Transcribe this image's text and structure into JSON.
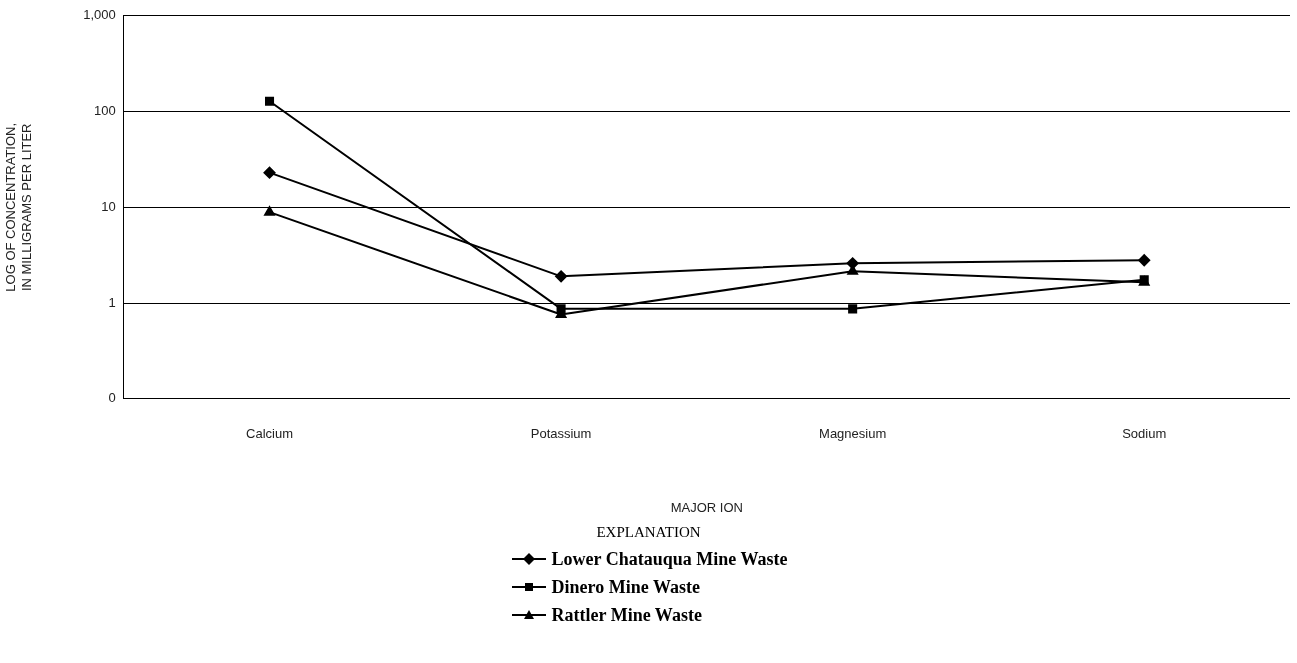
{
  "chart_data": {
    "type": "line",
    "xlabel": "MAJOR ION",
    "ylabel": "LOG OF CONCENTRATION,\nIN MILLIGRAMS PER LITER",
    "legend_title": "EXPLANATION",
    "legend": "bottom",
    "grid": "y",
    "log": "y",
    "line_style": "solid",
    "categories": [
      "Calcium",
      "Potassium",
      "Magnesium",
      "Sodium"
    ],
    "ylim": [
      0.1,
      1000
    ],
    "yticks": [
      {
        "value": 0.1,
        "label": "0"
      },
      1,
      10,
      100,
      {
        "value": 1000,
        "label": "1,000"
      }
    ],
    "series": [
      {
        "name": "Lower Chatauqua Mine Waste",
        "color": "#000000",
        "marker": "diamond",
        "values": [
          23,
          1.9,
          2.6,
          2.8
        ]
      },
      {
        "name": "Dinero Mine Waste",
        "color": "#000000",
        "marker": "square",
        "values": [
          128,
          0.87,
          0.87,
          1.75
        ]
      },
      {
        "name": "Rattler Mine Waste",
        "color": "#000000",
        "marker": "triangle",
        "values": [
          8.9,
          0.76,
          2.15,
          1.65
        ]
      }
    ]
  }
}
